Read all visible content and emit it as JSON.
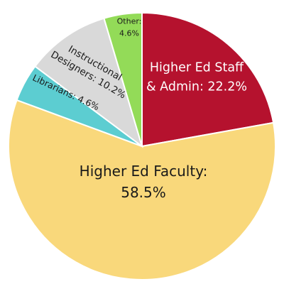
{
  "chart_data": {
    "type": "pie",
    "start": "12 o'clock",
    "direction": "clockwise",
    "slices": [
      {
        "id": "staff",
        "name": "Higher Ed Staff & Admin",
        "value": 22.2,
        "color": "#b5122e",
        "label_lines": [
          "Higher Ed Staff",
          "& Admin: 22.2%"
        ]
      },
      {
        "id": "faculty",
        "name": "Higher Ed Faculty",
        "value": 58.5,
        "color": "#f9d87b",
        "label_lines": [
          "Higher Ed Faculty:",
          "58.5%"
        ]
      },
      {
        "id": "librarians",
        "name": "Librarians",
        "value": 4.6,
        "color": "#5ccdd1",
        "label_lines": [
          "Librarians: 4.6%"
        ]
      },
      {
        "id": "instructional",
        "name": "Instructional Designers",
        "value": 10.2,
        "color": "#d9d9d9",
        "label_lines": [
          "Instructional",
          "Designers: 10.2%"
        ]
      },
      {
        "id": "other",
        "name": "Other",
        "value": 4.6,
        "color": "#93db58",
        "label_lines": [
          "Other:",
          "4.6%"
        ]
      }
    ]
  }
}
